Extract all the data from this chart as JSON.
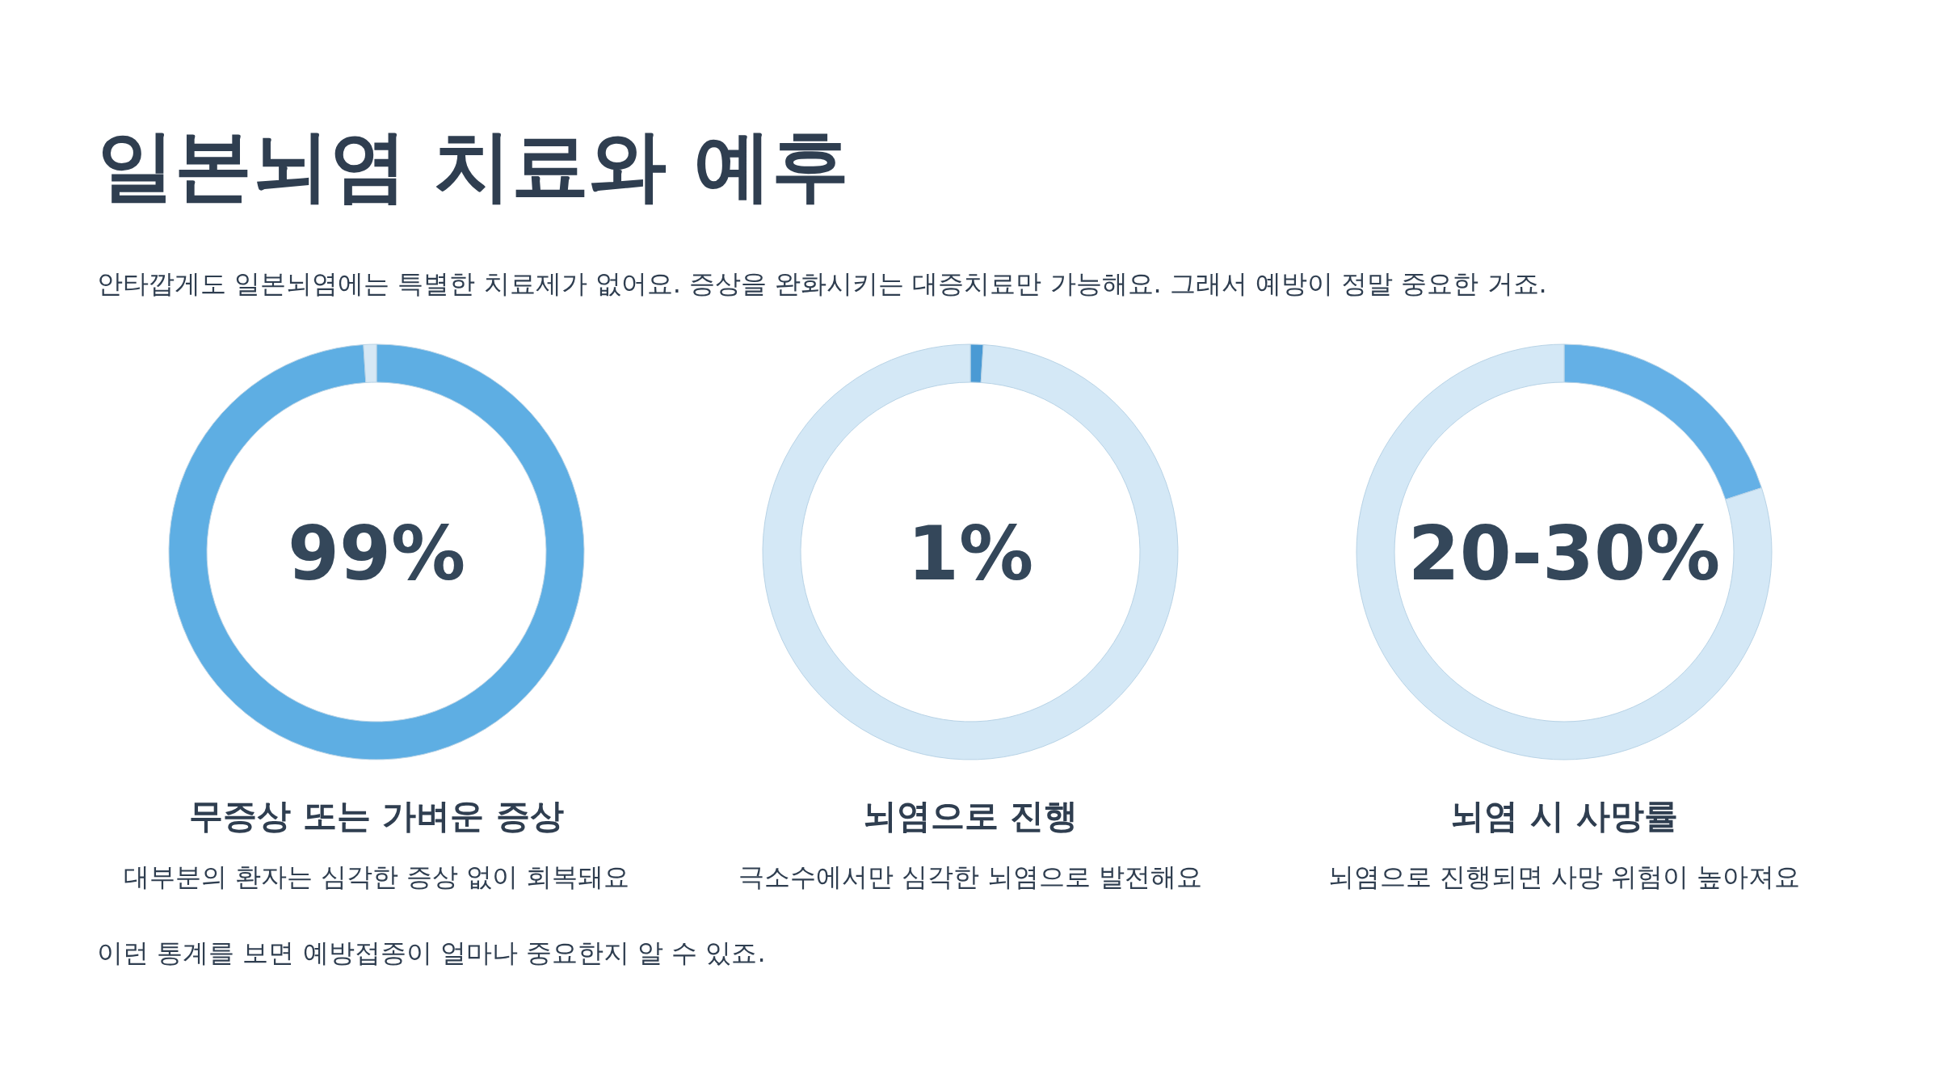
{
  "chart_data": [
    {
      "type": "other",
      "title": "일본뇌염 치료와 예후",
      "subtitle": "안타깝게도 일본뇌염에는 특별한 치료제가 없어요. 증상을 완화시키는 대증치료만 가능해요. 그래서 예방이 정말 중요한 거죠."
    },
    {
      "type": "donut",
      "title": "무증상 또는 가벼운 증상",
      "subtitle": "대부분의 환자는 심각한 증상 없이 회복돼요",
      "annotations": [
        "99%"
      ],
      "categories": [
        null,
        null
      ],
      "values": [
        99,
        1
      ],
      "colors": [
        "#5eaee3",
        "#d6e8f5"
      ]
    },
    {
      "type": "donut",
      "title": "뇌염으로 진행",
      "subtitle": "극소수에서만 심각한 뇌염으로 발전해요",
      "annotations": [
        "1%"
      ],
      "categories": [
        null,
        null
      ],
      "values": [
        1,
        99
      ],
      "colors": [
        "#4a9ad4",
        "#d4e8f6"
      ]
    },
    {
      "type": "donut",
      "title": "뇌염 시 사망률",
      "subtitle": "뇌염으로 진행되면 사망 위험이 높아져요",
      "annotations": [
        "20-30%"
      ],
      "categories": [
        null,
        null
      ],
      "values": [
        20,
        80
      ],
      "colors": [
        "#64b0e6",
        "#d4e8f6"
      ]
    },
    {
      "type": "other",
      "annotations": [
        "이런 통계를 보면 예방접종이 얼마나 중요한지 알 수 있죠."
      ]
    }
  ]
}
